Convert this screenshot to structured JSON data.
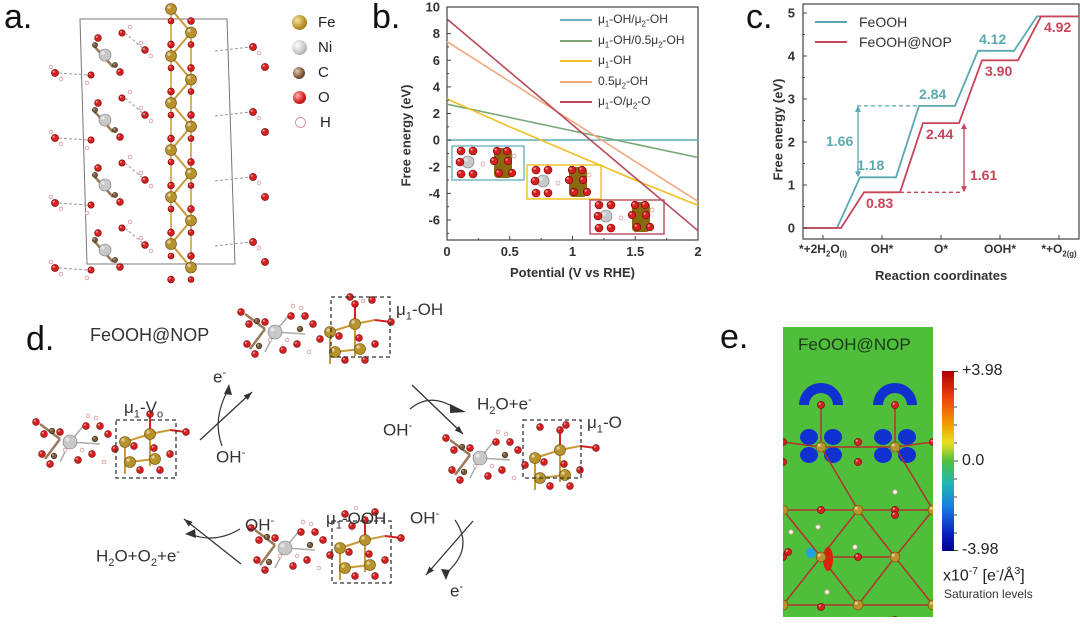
{
  "figure": {
    "panels": {
      "a": {
        "label": "a.",
        "legend": [
          {
            "element": "Fe",
            "color": "#b8922a"
          },
          {
            "element": "Ni",
            "color": "#c8c8c8"
          },
          {
            "element": "C",
            "color": "#7a5a3a"
          },
          {
            "element": "O",
            "color": "#d42020"
          },
          {
            "element": "H",
            "color": "#f2dede"
          }
        ]
      },
      "b": {
        "label": "b."
      },
      "c": {
        "label": "c."
      },
      "d": {
        "label": "d.",
        "title": "FeOOH@NOP",
        "states": {
          "vo": "μ1-Vo",
          "oh": "μ1-OH",
          "o": "μ1-O",
          "ooh": "μ1-OOH"
        },
        "steps": {
          "step1_in": "OH-",
          "step1_out": "e-",
          "step2_in": "OH-",
          "step2_out": "H2O+e-",
          "step3_in": "OH-",
          "step3_out": "e-",
          "step4_in": "OH-",
          "step4_out": "H2O+O2+e-"
        }
      },
      "e": {
        "label": "e.",
        "title": "FeOOH@NOP",
        "colorbar_max": "+3.98",
        "colorbar_mid": "0.0",
        "colorbar_min": "-3.98",
        "units": "x10-7 [e-/Å3]",
        "units_sup1": "-7",
        "units_sup2": "-",
        "units_sup3": "3",
        "caption": "Saturation levels"
      }
    }
  },
  "chart_data": [
    {
      "id": "b",
      "type": "line",
      "title": "",
      "xlabel": "Potential (V vs RHE)",
      "ylabel": "Free energy (eV)",
      "xlim": [
        0,
        2
      ],
      "ylim": [
        -7.5,
        10
      ],
      "xticks": [
        "0",
        "0.5",
        "1",
        "1.5",
        "2"
      ],
      "xtick_values": [
        0,
        0.5,
        1,
        1.5,
        2
      ],
      "yticks": [
        "10",
        "8",
        "6",
        "4",
        "2",
        "0",
        "-2",
        "-4",
        "-6"
      ],
      "ytick_values": [
        10,
        8,
        6,
        4,
        2,
        0,
        -2,
        -4,
        -6
      ],
      "legend_position": "top-right",
      "series": [
        {
          "name": "μ1-OH/μ2-OH",
          "color": "#6db3bd",
          "x": [
            0,
            2
          ],
          "y": [
            0,
            0
          ]
        },
        {
          "name": "μ1-OH/0.5μ2-OH",
          "color": "#7aa878",
          "x": [
            0,
            2
          ],
          "y": [
            2.7,
            -1.3
          ]
        },
        {
          "name": "μ1-OH",
          "color": "#f0c020",
          "x": [
            0,
            0.5,
            1,
            1.5,
            2
          ],
          "y": [
            3.1,
            1.0,
            -1.0,
            -3.0,
            -4.9
          ]
        },
        {
          "name": "0.5μ2-OH",
          "color": "#f0a880",
          "x": [
            0,
            2
          ],
          "y": [
            7.4,
            -4.6
          ]
        },
        {
          "name": "μ1-O/μ2-O",
          "color": "#b84a5a",
          "x": [
            0,
            2
          ],
          "y": [
            9.1,
            -6.8
          ]
        }
      ],
      "inset_boxes": [
        {
          "color": "#6db3bd"
        },
        {
          "color": "#f0c020"
        },
        {
          "color": "#b84a5a"
        }
      ]
    },
    {
      "id": "c",
      "type": "line",
      "title": "",
      "xlabel": "Reaction coordinates",
      "ylabel": "Free energy (eV)",
      "ylim": [
        -0.25,
        5.2
      ],
      "categories": [
        "*+2H2O(l)",
        "OH*",
        "O*",
        "OOH*",
        "*+O2(g)"
      ],
      "yticks": [
        "0",
        "1",
        "2",
        "3",
        "4",
        "5"
      ],
      "ytick_values": [
        0,
        1,
        2,
        3,
        4,
        5
      ],
      "legend_position": "top-left",
      "series": [
        {
          "name": "FeOOH",
          "color": "#5aa8b0",
          "values": [
            0,
            1.18,
            2.84,
            4.12,
            4.92
          ],
          "labels": [
            "",
            "1.18",
            "2.84",
            "4.12",
            ""
          ]
        },
        {
          "name": "FeOOH@NOP",
          "color": "#c8445a",
          "values": [
            0,
            0.83,
            2.44,
            3.9,
            4.92
          ],
          "labels": [
            "",
            "0.83",
            "2.44",
            "3.90",
            "4.92"
          ]
        }
      ],
      "annotations": [
        {
          "text": "1.66",
          "series": "FeOOH",
          "from": 1.18,
          "to": 2.84
        },
        {
          "text": "1.61",
          "series": "FeOOH@NOP",
          "from": 0.83,
          "to": 2.44
        }
      ]
    }
  ]
}
